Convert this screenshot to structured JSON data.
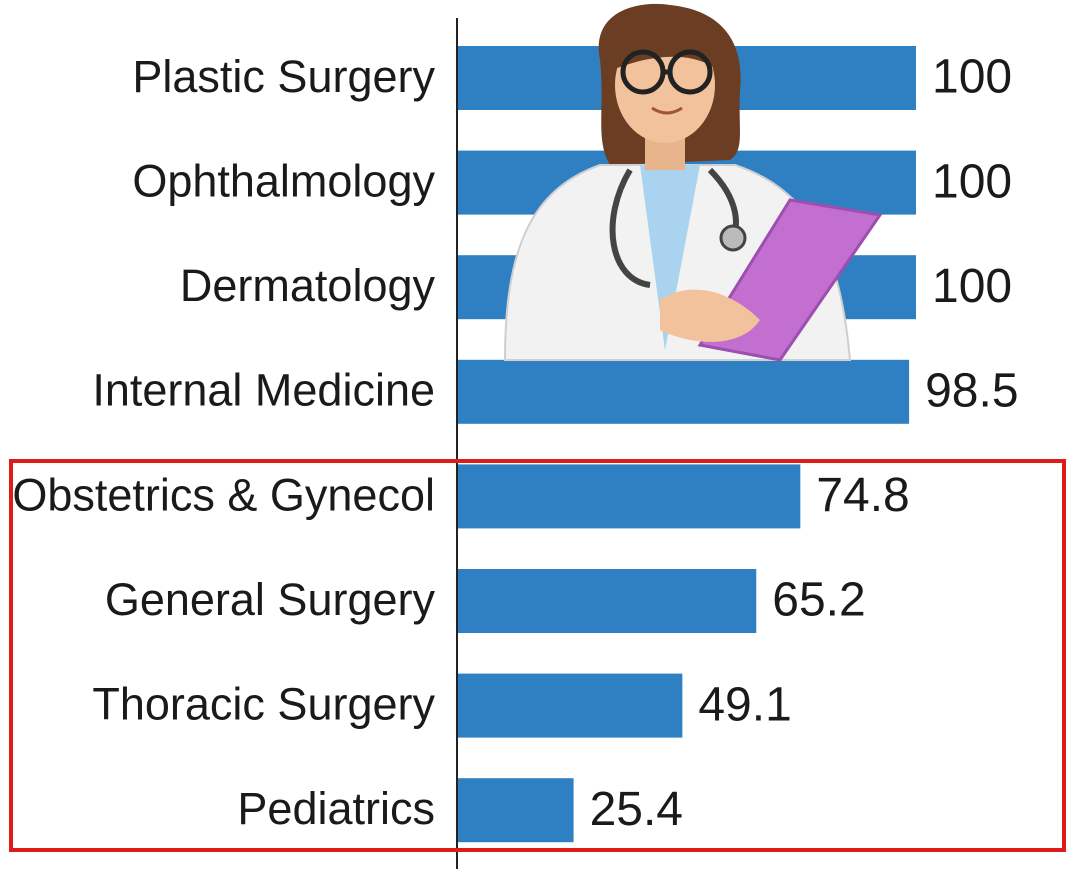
{
  "chart_data": {
    "type": "bar",
    "orientation": "horizontal",
    "categories": [
      "Plastic Surgery",
      "Ophthalmology",
      "Dermatology",
      "Internal Medicine",
      "Obstetrics & Gynecol",
      "General Surgery",
      "Thoracic Surgery",
      "Pediatrics"
    ],
    "values": [
      100,
      100,
      100,
      98.5,
      74.8,
      65.2,
      49.1,
      25.4
    ],
    "color": "#2f80c2"
  }
}
